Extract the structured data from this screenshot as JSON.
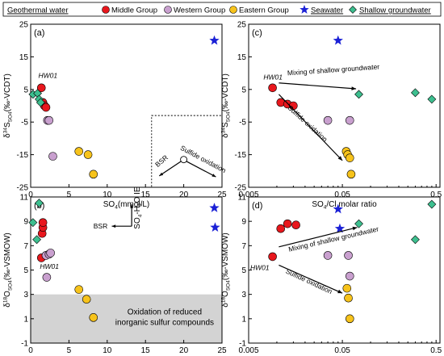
{
  "legend": {
    "geothermal_title": "Geothermal water",
    "middle": "Middle Group",
    "western": "Western Group",
    "eastern": "Eastern Group",
    "seawater": "Seawater",
    "shallow": "Shallow groundwater"
  },
  "colors": {
    "middle": "#e8171d",
    "western": "#c9a0cf",
    "eastern": "#f7c31b",
    "seawater": "#1b21d6",
    "shallow": "#3dbf8f",
    "shade": "#d3d3d3"
  },
  "chart_data": [
    {
      "type": "scatter",
      "panel": "(a)",
      "xlabel": "SO4(mmol/L)",
      "ylabel": "δ34S SO4 (‰-VCDT)",
      "xlim": [
        0,
        25
      ],
      "ylim": [
        -25,
        25
      ],
      "xticks": [
        0,
        5,
        10,
        15,
        20,
        25
      ],
      "yticks": [
        -25,
        -15,
        -5,
        5,
        15,
        25
      ],
      "yticklabels": [
        "-25",
        "-15",
        "-5",
        "5",
        "15",
        "25"
      ],
      "series": [
        {
          "name": "Middle Group",
          "key": "middle",
          "points": [
            [
              1.4,
              5.5
            ],
            [
              1.6,
              1.0
            ],
            [
              1.8,
              0.0
            ],
            [
              2.0,
              -0.5
            ]
          ]
        },
        {
          "name": "Western Group",
          "key": "western",
          "points": [
            [
              2.2,
              -4.5
            ],
            [
              2.4,
              -4.5
            ],
            [
              2.9,
              -15.5
            ]
          ]
        },
        {
          "name": "Eastern Group",
          "key": "eastern",
          "points": [
            [
              6.3,
              -14.0
            ],
            [
              7.5,
              -15.0
            ],
            [
              8.2,
              -21.0
            ]
          ]
        },
        {
          "name": "Seawater",
          "key": "seawater",
          "points": [
            [
              24.0,
              20.0
            ]
          ]
        },
        {
          "name": "Shallow groundwater",
          "key": "shallow",
          "points": [
            [
              0.3,
              3.5
            ],
            [
              0.9,
              3.8
            ],
            [
              1.1,
              2.0
            ],
            [
              1.3,
              1.0
            ]
          ]
        }
      ],
      "annotations": {
        "hw01": "HW01",
        "bsr": "BSR",
        "sulfide": "Sulfide oxidation"
      }
    },
    {
      "type": "scatter",
      "panel": "(b)",
      "xlabel": "SO4(mmol/L)",
      "ylabel": "δ18O SO4 (‰-VSMOW)",
      "xlim": [
        0,
        25
      ],
      "ylim": [
        -1,
        11
      ],
      "xticks": [
        0,
        5,
        10,
        15,
        20,
        25
      ],
      "yticks": [
        -1,
        1,
        3,
        5,
        7,
        9,
        11
      ],
      "yticklabels": [
        "-1",
        "1",
        "3",
        "5",
        "7",
        "9",
        "11"
      ],
      "series": [
        {
          "name": "Middle Group",
          "key": "middle",
          "points": [
            [
              1.4,
              6.0
            ],
            [
              1.5,
              8.0
            ],
            [
              1.6,
              8.5
            ],
            [
              1.6,
              8.9
            ]
          ]
        },
        {
          "name": "Western Group",
          "key": "western",
          "points": [
            [
              2.0,
              6.2
            ],
            [
              2.4,
              6.3
            ],
            [
              2.6,
              6.4
            ],
            [
              2.1,
              4.4
            ]
          ]
        },
        {
          "name": "Eastern Group",
          "key": "eastern",
          "points": [
            [
              6.3,
              3.4
            ],
            [
              7.3,
              2.6
            ],
            [
              8.2,
              1.1
            ]
          ]
        },
        {
          "name": "Seawater",
          "key": "seawater",
          "points": [
            [
              24.0,
              10.1
            ],
            [
              24.1,
              8.5
            ]
          ]
        },
        {
          "name": "Shallow groundwater",
          "key": "shallow",
          "points": [
            [
              0.3,
              8.9
            ],
            [
              0.8,
              7.5
            ],
            [
              1.1,
              10.5
            ]
          ]
        }
      ],
      "shaded": {
        "y_range": [
          -1,
          3
        ],
        "label_line1": "Oxidation of reduced",
        "label_line2": "inorganic sulfur compounds"
      },
      "annotations": {
        "hw01": "HW01",
        "bsr": "BSR",
        "so4h2o": "SO4-H2O IE"
      }
    },
    {
      "type": "scatter",
      "panel": "(c)",
      "xlabel": "SO4/Cl molar ratio",
      "ylabel": "δ34S SO4 (‰-VCDT)",
      "xscale": "log",
      "xlim": [
        0.005,
        0.55
      ],
      "ylim": [
        -25,
        25
      ],
      "xticks": [
        0.005,
        0.05,
        0.5
      ],
      "xticklabels": [
        "0.005",
        "0.05",
        "0.5"
      ],
      "yticks": [
        -25,
        -15,
        -5,
        5,
        15,
        25
      ],
      "yticklabels": [
        "-25",
        "-15",
        "-5",
        "5",
        "15",
        "25"
      ],
      "series": [
        {
          "name": "Middle Group",
          "key": "middle",
          "points": [
            [
              0.009,
              5.5
            ],
            [
              0.011,
              1.0
            ],
            [
              0.013,
              0.5
            ],
            [
              0.015,
              0.0
            ]
          ]
        },
        {
          "name": "Western Group",
          "key": "western",
          "points": [
            [
              0.035,
              -4.5
            ],
            [
              0.06,
              -4.5
            ]
          ]
        },
        {
          "name": "Eastern Group",
          "key": "eastern",
          "points": [
            [
              0.055,
              -14.0
            ],
            [
              0.057,
              -15.0
            ],
            [
              0.06,
              -16.0
            ],
            [
              0.062,
              -21.0
            ]
          ]
        },
        {
          "name": "Seawater",
          "key": "seawater",
          "points": [
            [
              0.045,
              20.0
            ]
          ]
        },
        {
          "name": "Shallow groundwater",
          "key": "shallow",
          "points": [
            [
              0.075,
              3.5
            ],
            [
              0.3,
              4.0
            ],
            [
              0.45,
              2.0
            ]
          ]
        }
      ],
      "annotations": {
        "hw01": "HW01",
        "mixing": "Mixing of shallow groundwater",
        "sulfide": "Sulfide oxidation"
      }
    },
    {
      "type": "scatter",
      "panel": "(d)",
      "xlabel": "SO4/Cl molar ratio",
      "ylabel": "δ18O SO4 (‰-VSMOW)",
      "xscale": "log",
      "xlim": [
        0.005,
        0.55
      ],
      "ylim": [
        -1,
        11
      ],
      "xticks": [
        0.005,
        0.05,
        0.5
      ],
      "xticklabels": [
        "0.005",
        "0.05",
        "0.5"
      ],
      "yticks": [
        -1,
        1,
        3,
        5,
        7,
        9,
        11
      ],
      "yticklabels": [
        "-1",
        "1",
        "3",
        "5",
        "7",
        "9",
        "11"
      ],
      "series": [
        {
          "name": "Middle Group",
          "key": "middle",
          "points": [
            [
              0.009,
              6.1
            ],
            [
              0.011,
              8.4
            ],
            [
              0.013,
              8.8
            ],
            [
              0.016,
              8.7
            ]
          ]
        },
        {
          "name": "Western Group",
          "key": "western",
          "points": [
            [
              0.035,
              6.2
            ],
            [
              0.058,
              6.2
            ],
            [
              0.06,
              4.5
            ]
          ]
        },
        {
          "name": "Eastern Group",
          "key": "eastern",
          "points": [
            [
              0.056,
              3.5
            ],
            [
              0.058,
              2.7
            ],
            [
              0.06,
              1.0
            ]
          ]
        },
        {
          "name": "Seawater",
          "key": "seawater",
          "points": [
            [
              0.045,
              10.0
            ],
            [
              0.047,
              8.4
            ]
          ]
        },
        {
          "name": "Shallow groundwater",
          "key": "shallow",
          "points": [
            [
              0.075,
              8.8
            ],
            [
              0.3,
              7.5
            ],
            [
              0.45,
              10.4
            ]
          ]
        }
      ],
      "annotations": {
        "hw01": "HW01",
        "mixing": "Mixing of shallow groundwater",
        "sulfide": "Sulfide oxidation"
      }
    }
  ]
}
